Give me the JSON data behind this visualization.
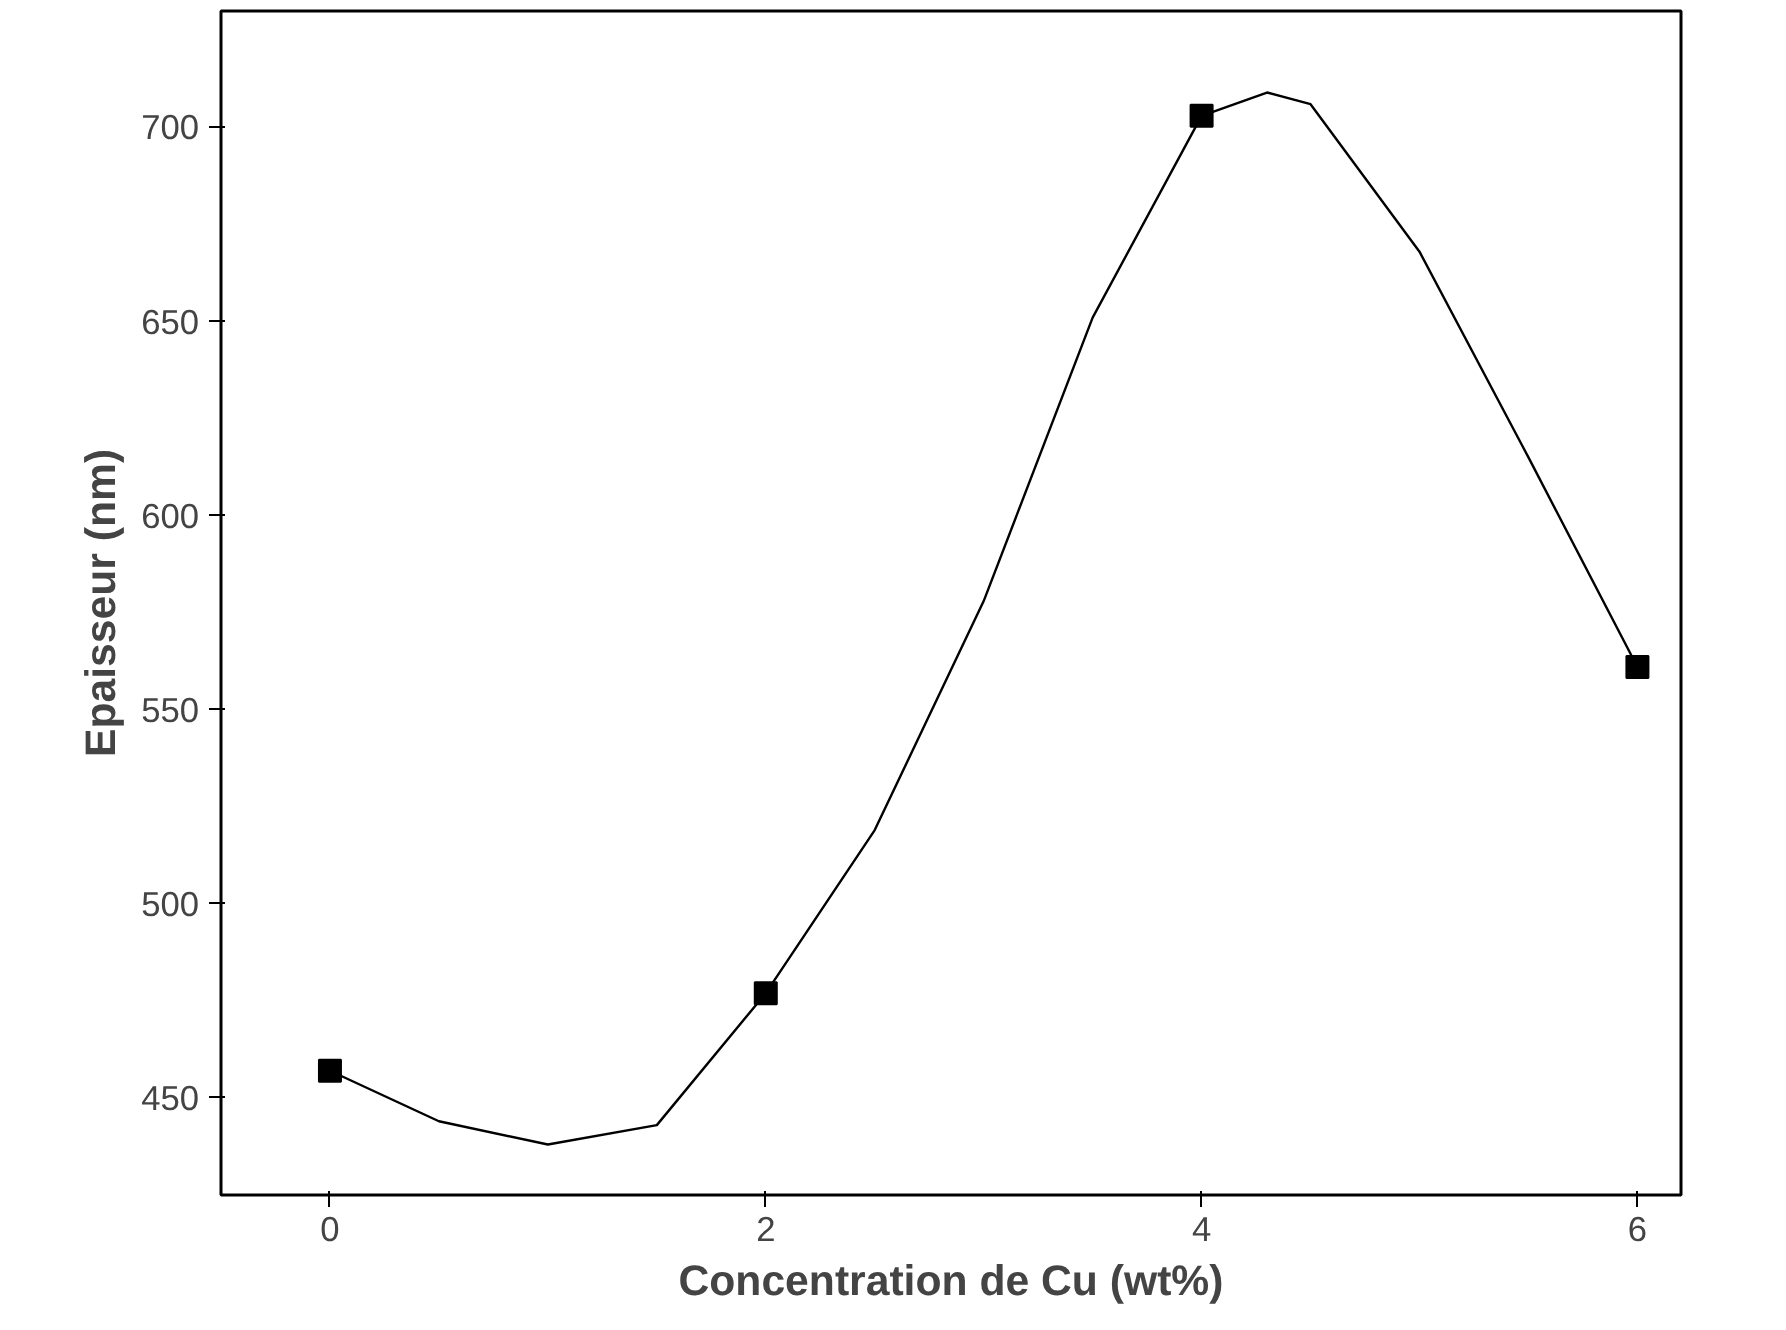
{
  "chart_data": {
    "type": "scatter",
    "xlabel": "Concentration de Cu (wt%)",
    "ylabel": "Epaisseur (nm)",
    "xlim": [
      -0.5,
      6.2
    ],
    "ylim": [
      425,
      730
    ],
    "xticks": [
      0,
      2,
      4,
      6
    ],
    "yticks": [
      450,
      500,
      550,
      600,
      650,
      700
    ],
    "grid": false,
    "series": [
      {
        "type": "line",
        "color": "#000000",
        "marker": "none",
        "x": [
          0,
          0.5,
          1,
          1.5,
          2,
          2.5,
          3,
          3.5,
          4,
          4.3,
          4.5,
          5,
          5.5,
          6
        ],
        "values": [
          457,
          444,
          438,
          443,
          477,
          519,
          578,
          651,
          703,
          709,
          706,
          668,
          615,
          561
        ]
      },
      {
        "color": "#000000",
        "marker": "square",
        "x": [
          0,
          2,
          4,
          6
        ],
        "values": [
          457,
          477,
          703,
          561
        ]
      }
    ]
  }
}
